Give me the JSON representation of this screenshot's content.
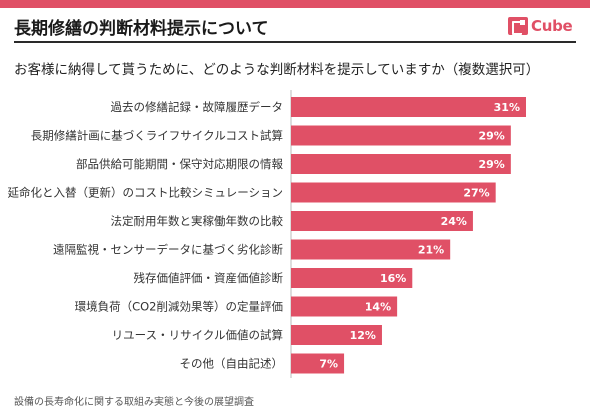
{
  "header": {
    "title": "長期修繕の判断材料提示について",
    "logo_text": "Cube",
    "accent_color": "#e05066"
  },
  "question": "お客様に納得して貰うために、どのような判断材料を提示していますか（複数選択可）",
  "footnote": "設備の長寿命化に関する取組み実態と今後の展望調査",
  "chart_data": {
    "type": "bar",
    "orientation": "horizontal",
    "categories": [
      "過去の修繕記録・故障履歴データ",
      "長期修繕計画に基づくライフサイクルコスト試算",
      "部品供給可能期間・保守対応期限の情報",
      "延命化と入替（更新）のコスト比較シミュレーション",
      "法定耐用年数と実稼働年数の比較",
      "遠隔監視・センサーデータに基づく劣化診断",
      "残存価値評価・資産価値診断",
      "環境負荷（CO2削減効果等）の定量評価",
      "リユース・リサイクル価値の試算",
      "その他（自由記述）"
    ],
    "values": [
      31,
      29,
      29,
      27,
      24,
      21,
      16,
      14,
      12,
      7
    ],
    "value_labels": [
      "31%",
      "29%",
      "29%",
      "27%",
      "24%",
      "21%",
      "16%",
      "14%",
      "12%",
      "7%"
    ],
    "unit": "%",
    "xlim": [
      0,
      31
    ],
    "bar_color": "#e05066",
    "grid": false,
    "legend": "none"
  }
}
